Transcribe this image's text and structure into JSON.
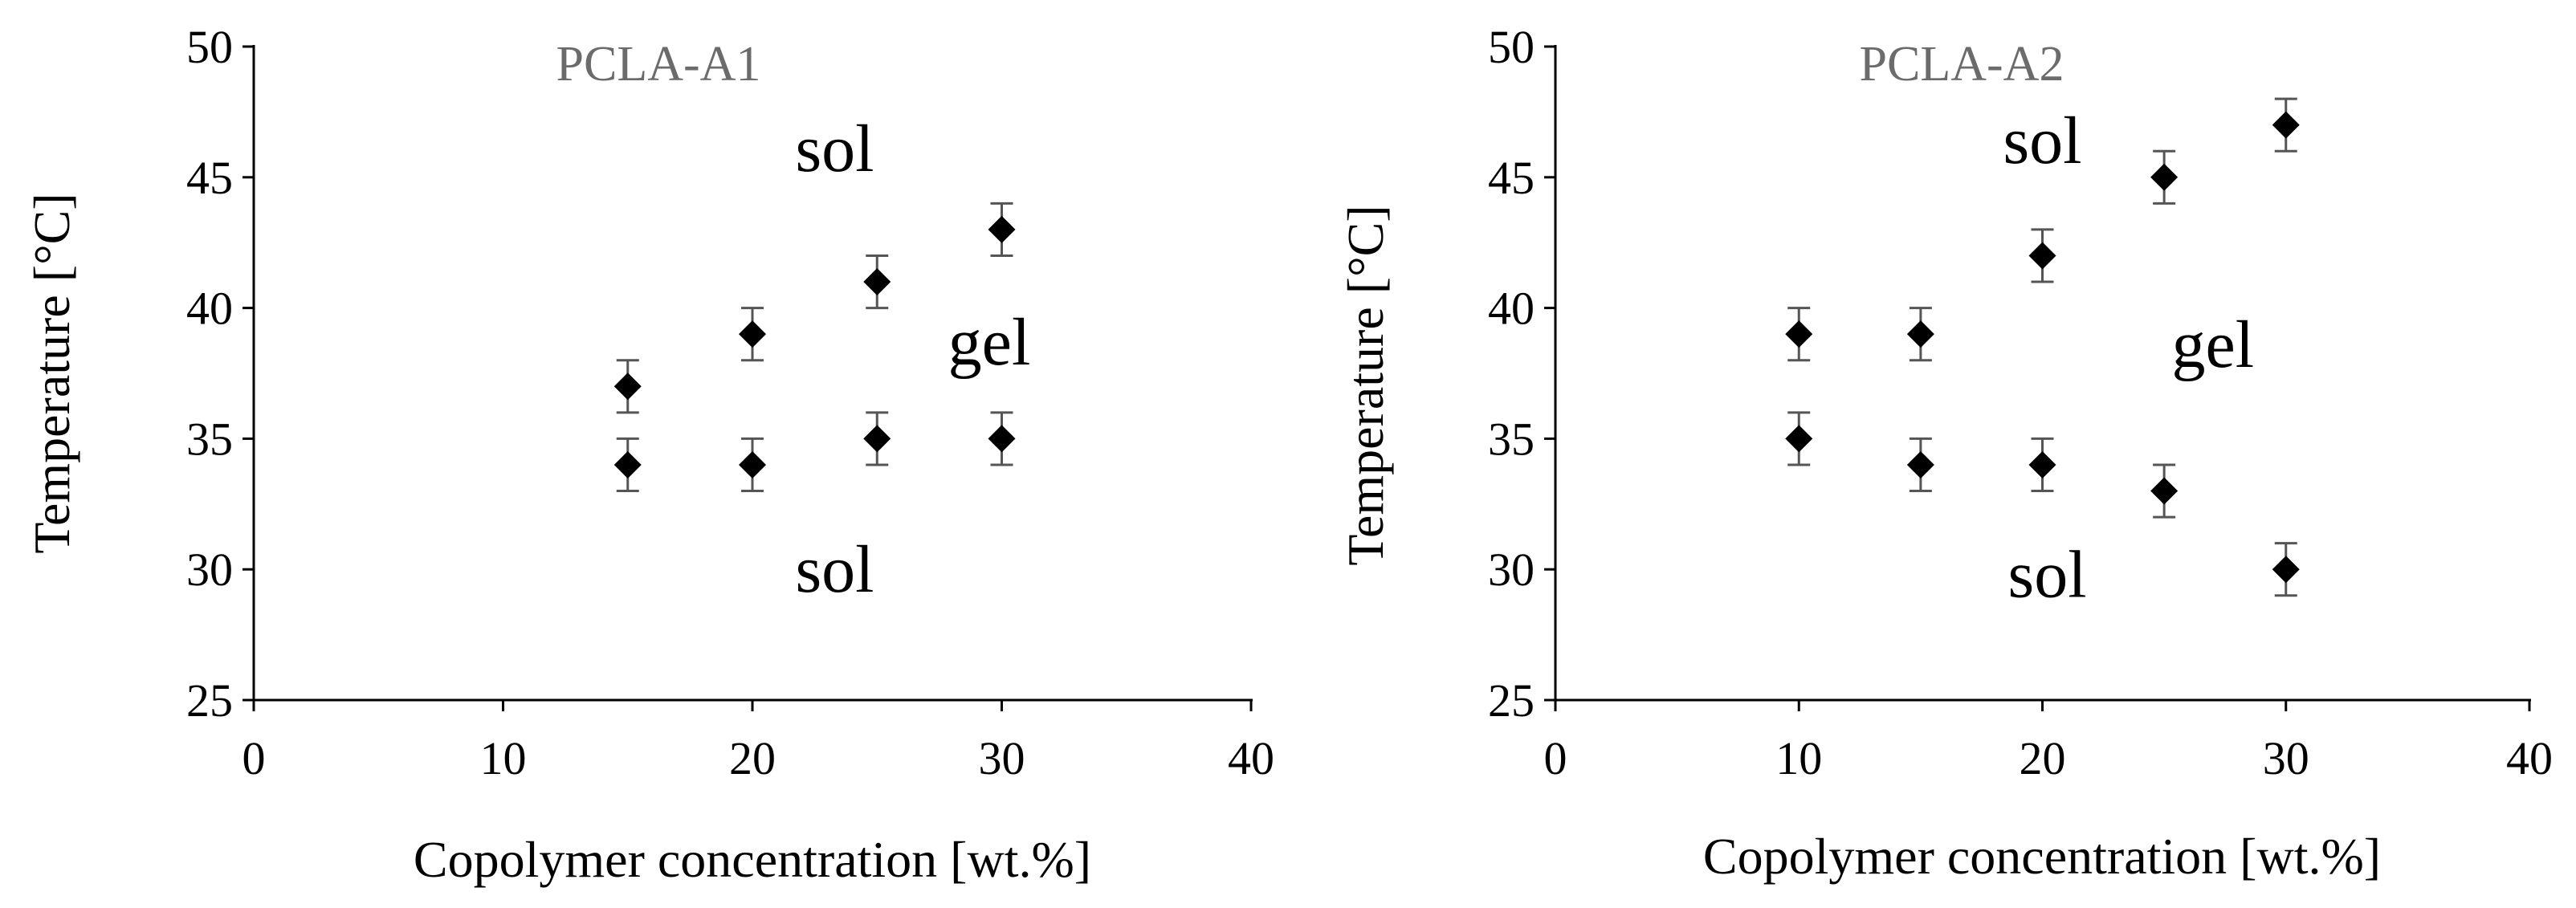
{
  "colors": {
    "marker": "#000000",
    "error_bar": "#555555",
    "axis": "#000000",
    "panel_title": "#6b6b6b"
  },
  "chart_data": [
    {
      "type": "scatter",
      "title": "PCLA-A1",
      "xlabel": "Copolymer concentration [wt.%]",
      "ylabel": "Temperature [°C]",
      "xlim": [
        0,
        40
      ],
      "ylim": [
        25,
        50
      ],
      "xticks": [
        0,
        10,
        20,
        30,
        40
      ],
      "yticks": [
        25,
        30,
        35,
        40,
        45,
        50
      ],
      "grid": false,
      "marker": "diamond",
      "error": 1,
      "points": [
        {
          "x": 15,
          "y": 34
        },
        {
          "x": 20,
          "y": 34
        },
        {
          "x": 25,
          "y": 35
        },
        {
          "x": 30,
          "y": 35
        },
        {
          "x": 15,
          "y": 37
        },
        {
          "x": 20,
          "y": 39
        },
        {
          "x": 25,
          "y": 41
        },
        {
          "x": 30,
          "y": 43
        }
      ],
      "annotations": [
        {
          "text": "sol",
          "x": 23.3,
          "y": 46.1
        },
        {
          "text": "gel",
          "x": 29.5,
          "y": 38.7
        },
        {
          "text": "sol",
          "x": 23.3,
          "y": 30.0
        }
      ]
    },
    {
      "type": "scatter",
      "title": "PCLA-A2",
      "xlabel": "Copolymer concentration [wt.%]",
      "ylabel": "Temperature [°C]",
      "xlim": [
        0,
        40
      ],
      "ylim": [
        25,
        50
      ],
      "xticks": [
        0,
        10,
        20,
        30,
        40
      ],
      "yticks": [
        25,
        30,
        35,
        40,
        45,
        50
      ],
      "grid": false,
      "marker": "diamond",
      "error": 1,
      "points": [
        {
          "x": 10,
          "y": 35
        },
        {
          "x": 15,
          "y": 34
        },
        {
          "x": 20,
          "y": 34
        },
        {
          "x": 25,
          "y": 33
        },
        {
          "x": 30,
          "y": 30
        },
        {
          "x": 10,
          "y": 39
        },
        {
          "x": 15,
          "y": 39
        },
        {
          "x": 20,
          "y": 42
        },
        {
          "x": 25,
          "y": 45
        },
        {
          "x": 30,
          "y": 47
        }
      ],
      "annotations": [
        {
          "text": "sol",
          "x": 20.0,
          "y": 46.4
        },
        {
          "text": "gel",
          "x": 27.0,
          "y": 38.6
        },
        {
          "text": "sol",
          "x": 20.2,
          "y": 29.8
        }
      ]
    }
  ]
}
